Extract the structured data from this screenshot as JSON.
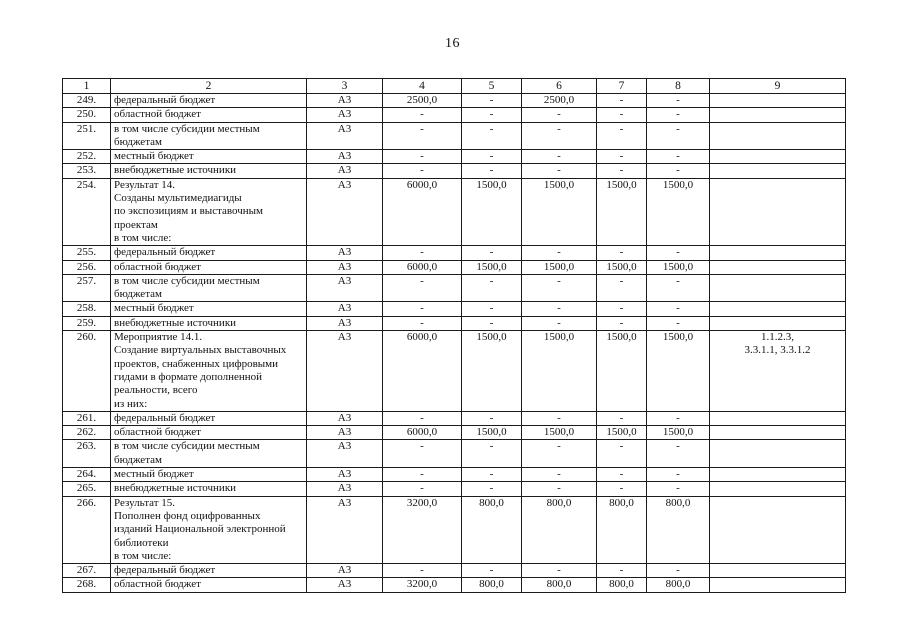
{
  "page_number": "16",
  "table": {
    "headers": [
      "1",
      "2",
      "3",
      "4",
      "5",
      "6",
      "7",
      "8",
      "9"
    ],
    "rows": [
      [
        "249.",
        "федеральный бюджет",
        "А3",
        "2500,0",
        "-",
        "2500,0",
        "-",
        "-",
        ""
      ],
      [
        "250.",
        "областной бюджет",
        "А3",
        "-",
        "-",
        "-",
        "-",
        "-",
        ""
      ],
      [
        "251.",
        "в том числе субсидии местным\nбюджетам",
        "А3",
        "-",
        "-",
        "-",
        "-",
        "-",
        ""
      ],
      [
        "252.",
        "местный бюджет",
        "А3",
        "-",
        "-",
        "-",
        "-",
        "-",
        ""
      ],
      [
        "253.",
        "внебюджетные источники",
        "А3",
        "-",
        "-",
        "-",
        "-",
        "-",
        ""
      ],
      [
        "254.",
        "Результат 14.\nСозданы мультимедиагиды\nпо экспозициям и выставочным\nпроектам\nв том числе:",
        "А3",
        "6000,0",
        "1500,0",
        "1500,0",
        "1500,0",
        "1500,0",
        ""
      ],
      [
        "255.",
        "федеральный бюджет",
        "А3",
        "-",
        "-",
        "-",
        "-",
        "-",
        ""
      ],
      [
        "256.",
        "областной бюджет",
        "А3",
        "6000,0",
        "1500,0",
        "1500,0",
        "1500,0",
        "1500,0",
        ""
      ],
      [
        "257.",
        "в том числе субсидии местным\nбюджетам",
        "А3",
        "-",
        "-",
        "-",
        "-",
        "-",
        ""
      ],
      [
        "258.",
        "местный бюджет",
        "А3",
        "-",
        "-",
        "-",
        "-",
        "-",
        ""
      ],
      [
        "259.",
        "внебюджетные источники",
        "А3",
        "-",
        "-",
        "-",
        "-",
        "-",
        ""
      ],
      [
        "260.",
        "Мероприятие 14.1.\nСоздание виртуальных выставочных\nпроектов, снабженных цифровыми\nгидами в формате дополненной\nреальности, всего\nиз них:",
        "А3",
        "6000,0",
        "1500,0",
        "1500,0",
        "1500,0",
        "1500,0",
        "1.1.2.3,\n3.3.1.1, 3.3.1.2"
      ],
      [
        "261.",
        "федеральный бюджет",
        "А3",
        "-",
        "-",
        "-",
        "-",
        "-",
        ""
      ],
      [
        "262.",
        "областной бюджет",
        "А3",
        "6000,0",
        "1500,0",
        "1500,0",
        "1500,0",
        "1500,0",
        ""
      ],
      [
        "263.",
        "в том числе субсидии местным\nбюджетам",
        "А3",
        "-",
        "-",
        "-",
        "-",
        "-",
        ""
      ],
      [
        "264.",
        "местный бюджет",
        "А3",
        "-",
        "-",
        "-",
        "-",
        "-",
        ""
      ],
      [
        "265.",
        "внебюджетные источники",
        "А3",
        "-",
        "-",
        "-",
        "-",
        "-",
        ""
      ],
      [
        "266.",
        "Результат 15.\nПополнен фонд оцифрованных\nизданий Национальной электронной\nбиблиотеки\nв том числе:",
        "А3",
        "3200,0",
        "800,0",
        "800,0",
        "800,0",
        "800,0",
        ""
      ],
      [
        "267.",
        "федеральный бюджет",
        "А3",
        "-",
        "-",
        "-",
        "-",
        "-",
        ""
      ],
      [
        "268.",
        "областной бюджет",
        "А3",
        "3200,0",
        "800,0",
        "800,0",
        "800,0",
        "800,0",
        ""
      ]
    ]
  },
  "colors": {
    "ink": "#121212",
    "paper": "#ffffff"
  }
}
